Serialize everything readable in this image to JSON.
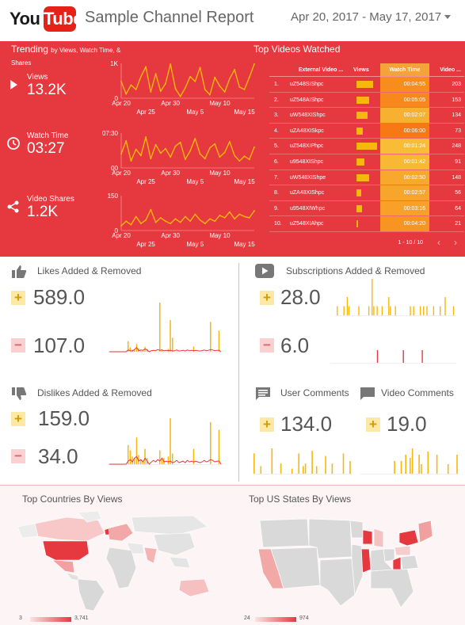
{
  "header": {
    "logo_you": "You",
    "logo_tube": "Tube",
    "title": "Sample Channel Report",
    "date_range": "Apr 20, 2017 - May 17, 2017"
  },
  "trending": {
    "title": "Trending",
    "subtitle": "by Views, Watch Time, & Shares",
    "kpis": [
      {
        "label": "Views",
        "value": "13.2K",
        "icon": "play-icon"
      },
      {
        "label": "Watch Time",
        "value": "03:27",
        "icon": "clock-icon"
      },
      {
        "label": "Video Shares",
        "value": "1.2K",
        "icon": "share-icon"
      }
    ],
    "x_tick_top": [
      "Apr 20",
      "Apr 30",
      "May 10"
    ],
    "x_tick_bottom": [
      "Apr 25",
      "May 5",
      "May 15"
    ]
  },
  "chart_data": [
    {
      "type": "line",
      "title": "Views",
      "ylim": [
        0,
        1000
      ],
      "y_ticks": [
        "1K",
        "0"
      ],
      "x": [
        "Apr 20",
        "Apr 21",
        "Apr 22",
        "Apr 23",
        "Apr 24",
        "Apr 25",
        "Apr 26",
        "Apr 27",
        "Apr 28",
        "Apr 29",
        "Apr 30",
        "May 1",
        "May 2",
        "May 3",
        "May 4",
        "May 5",
        "May 6",
        "May 7",
        "May 8",
        "May 9",
        "May 10",
        "May 11",
        "May 12",
        "May 13",
        "May 14",
        "May 15",
        "May 16",
        "May 17"
      ],
      "values": [
        480,
        120,
        380,
        250,
        620,
        900,
        180,
        700,
        200,
        420,
        980,
        280,
        50,
        300,
        620,
        480,
        880,
        250,
        100,
        600,
        350,
        180,
        560,
        820,
        320,
        250,
        600,
        980
      ],
      "color": "#f8b70d"
    },
    {
      "type": "line",
      "title": "Watch Time",
      "ylim": [
        0,
        450
      ],
      "y_ticks": [
        "07:30",
        "00"
      ],
      "x": [
        "Apr 20",
        "Apr 21",
        "Apr 22",
        "Apr 23",
        "Apr 24",
        "Apr 25",
        "Apr 26",
        "Apr 27",
        "Apr 28",
        "Apr 29",
        "Apr 30",
        "May 1",
        "May 2",
        "May 3",
        "May 4",
        "May 5",
        "May 6",
        "May 7",
        "May 8",
        "May 9",
        "May 10",
        "May 11",
        "May 12",
        "May 13",
        "May 14",
        "May 15",
        "May 16",
        "May 17"
      ],
      "values": [
        180,
        350,
        90,
        240,
        160,
        400,
        120,
        300,
        190,
        250,
        140,
        280,
        330,
        110,
        220,
        380,
        180,
        120,
        260,
        310,
        140,
        200,
        340,
        160,
        90,
        150,
        110,
        270
      ],
      "color": "#f8b70d"
    },
    {
      "type": "line",
      "title": "Video Shares",
      "ylim": [
        0,
        150
      ],
      "y_ticks": [
        "150",
        "0"
      ],
      "x": [
        "Apr 20",
        "Apr 21",
        "Apr 22",
        "Apr 23",
        "Apr 24",
        "Apr 25",
        "Apr 26",
        "Apr 27",
        "Apr 28",
        "Apr 29",
        "Apr 30",
        "May 1",
        "May 2",
        "May 3",
        "May 4",
        "May 5",
        "May 6",
        "May 7",
        "May 8",
        "May 9",
        "May 10",
        "May 11",
        "May 12",
        "May 13",
        "May 14",
        "May 15",
        "May 16",
        "May 17"
      ],
      "values": [
        20,
        40,
        25,
        60,
        30,
        45,
        90,
        35,
        55,
        40,
        30,
        50,
        35,
        60,
        40,
        70,
        45,
        30,
        50,
        40,
        65,
        55,
        80,
        50,
        70,
        60,
        55,
        85
      ],
      "color": "#f8b70d"
    },
    {
      "type": "bar",
      "title": "Likes Added & Removed",
      "added": [
        0,
        0,
        0,
        0,
        0,
        0,
        0,
        0,
        0,
        30,
        12,
        6,
        5,
        22,
        10,
        4,
        3,
        14,
        8,
        0,
        0,
        0,
        0,
        0,
        140,
        6,
        0,
        0,
        8,
        90,
        40,
        0,
        0,
        0,
        0,
        0,
        0,
        0,
        0,
        0,
        15,
        0,
        0,
        0,
        0,
        0,
        0,
        0,
        85,
        0,
        0,
        0,
        60,
        0
      ],
      "removed": [
        0,
        0,
        0,
        0,
        0,
        0,
        0,
        0,
        0,
        5,
        3,
        2,
        6,
        12,
        3,
        5,
        4,
        8,
        5,
        0,
        3,
        4,
        3,
        6,
        4,
        5,
        3,
        4,
        3,
        4,
        2,
        3,
        5,
        2,
        3,
        4,
        2,
        5,
        3,
        4,
        3,
        4,
        3,
        2,
        3,
        5,
        3,
        4,
        6,
        5,
        3,
        4,
        4,
        0
      ],
      "added_color": "#f8b70d",
      "removed_color": "#e6393f"
    },
    {
      "type": "bar",
      "title": "Dislikes Added & Removed",
      "added": [
        0,
        0,
        0,
        0,
        0,
        0,
        0,
        0,
        0,
        25,
        18,
        10,
        8,
        35,
        12,
        6,
        4,
        20,
        8,
        0,
        0,
        0,
        0,
        0,
        18,
        6,
        8,
        0,
        10,
        60,
        14,
        0,
        0,
        0,
        0,
        0,
        0,
        0,
        0,
        0,
        20,
        0,
        0,
        0,
        0,
        0,
        0,
        0,
        55,
        0,
        0,
        0,
        45,
        0
      ],
      "removed": [
        0,
        0,
        0,
        0,
        0,
        0,
        0,
        0,
        0,
        4,
        6,
        3,
        8,
        10,
        4,
        6,
        3,
        8,
        4,
        0,
        3,
        5,
        3,
        6,
        4,
        8,
        3,
        4,
        3,
        4,
        2,
        3,
        5,
        2,
        3,
        4,
        2,
        5,
        3,
        4,
        3,
        4,
        3,
        2,
        3,
        5,
        3,
        4,
        6,
        5,
        3,
        4,
        4,
        0
      ],
      "added_color": "#f8b70d",
      "removed_color": "#e6393f"
    },
    {
      "type": "bar",
      "title": "Subscriptions Added & Removed",
      "added": [
        0,
        1,
        0,
        0,
        0,
        1,
        0,
        2,
        1,
        0,
        0,
        0,
        0,
        0,
        1,
        0,
        0,
        0,
        0,
        0,
        1,
        0,
        4,
        1,
        0,
        1,
        0,
        0,
        1,
        0,
        0,
        0,
        2,
        1,
        0,
        0,
        1,
        0,
        0,
        0,
        0,
        0,
        0,
        0,
        0,
        1,
        0,
        1,
        0,
        0,
        0,
        1,
        0,
        1,
        0,
        1,
        0,
        0,
        0,
        1,
        0,
        0,
        0,
        1,
        0,
        0,
        2,
        0,
        0,
        0,
        0,
        1,
        0
      ],
      "removed": [
        0,
        0,
        0,
        0,
        0,
        0,
        0,
        0,
        0,
        0,
        0,
        0,
        0,
        0,
        0,
        0,
        0,
        0,
        0,
        0,
        0,
        0,
        0,
        0,
        0,
        0,
        0,
        1,
        0,
        0,
        0,
        0,
        0,
        0,
        0,
        0,
        0,
        0,
        0,
        0,
        0,
        0,
        1,
        0,
        0,
        0,
        0,
        0,
        0,
        0,
        0,
        0,
        0,
        1,
        0,
        0,
        0,
        0,
        0,
        0,
        0,
        0,
        0,
        0,
        0,
        0,
        0,
        0,
        0,
        0,
        0,
        0,
        0
      ],
      "added_color": "#f8b70d",
      "removed_color": "#e6393f"
    },
    {
      "type": "bar",
      "title": "User Comments",
      "values": [
        8,
        0,
        0,
        3,
        0,
        0,
        0,
        0,
        10,
        0,
        0,
        0,
        4,
        0,
        0,
        0,
        0,
        2,
        0,
        0,
        8,
        0,
        3,
        4,
        0,
        0,
        9,
        0,
        3,
        0,
        0,
        0,
        7,
        0,
        0,
        4,
        0,
        0,
        0,
        0,
        8,
        0,
        0,
        5
      ],
      "color": "#f8b70d"
    },
    {
      "type": "bar",
      "title": "Video Comments",
      "values": [
        0,
        0,
        0,
        0,
        0,
        0,
        0,
        0,
        0,
        0,
        0,
        0,
        0,
        0,
        0,
        4,
        0,
        0,
        4,
        0,
        6,
        0,
        5,
        8,
        0,
        0,
        6,
        3,
        0,
        0,
        7,
        0,
        0,
        0,
        6,
        0,
        0,
        0,
        0,
        3,
        0,
        0,
        0,
        6
      ],
      "color": "#f8b70d"
    }
  ],
  "top_videos": {
    "title": "Top Videos Watched",
    "columns": [
      "External Video ...",
      "Views",
      "Watch Time",
      "Video ..."
    ],
    "rows": [
      {
        "rank": "1.",
        "id": "uZ548SIShpc",
        "views_frac": 0.82,
        "watch_time": "00:04:55",
        "videos": "203",
        "wt_level": 0.75
      },
      {
        "rank": "2.",
        "id": "uZ548AIShpc",
        "views_frac": 0.62,
        "watch_time": "00:05:05",
        "videos": "153",
        "wt_level": 0.8
      },
      {
        "rank": "3.",
        "id": "uW548XIShpc",
        "views_frac": 0.55,
        "watch_time": "00:02:07",
        "videos": "134",
        "wt_level": 0.3
      },
      {
        "rank": "4.",
        "id": "uZA48XISkpc",
        "views_frac": 0.3,
        "watch_time": "00:06:00",
        "videos": "73",
        "wt_level": 1.0
      },
      {
        "rank": "5.",
        "id": "uZ548XIPhpc",
        "views_frac": 1.0,
        "watch_time": "00:01:24",
        "videos": "248",
        "wt_level": 0.15
      },
      {
        "rank": "6.",
        "id": "u9548XIShpc",
        "views_frac": 0.37,
        "watch_time": "00:01:42",
        "videos": "91",
        "wt_level": 0.2
      },
      {
        "rank": "7.",
        "id": "uW548XIShpe",
        "views_frac": 0.6,
        "watch_time": "00:02:50",
        "videos": "148",
        "wt_level": 0.4
      },
      {
        "rank": "8.",
        "id": "uZA48XIShpc",
        "views_frac": 0.23,
        "watch_time": "00:02:57",
        "videos": "56",
        "wt_level": 0.42
      },
      {
        "rank": "9.",
        "id": "u9548XIWhpc",
        "views_frac": 0.26,
        "watch_time": "00:03:16",
        "videos": "64",
        "wt_level": 0.5
      },
      {
        "rank": "10.",
        "id": "uZ548XIAhpc",
        "views_frac": 0.09,
        "watch_time": "00:04:20",
        "videos": "21",
        "wt_level": 0.65
      }
    ],
    "pager": "1 - 10 / 10"
  },
  "cards": {
    "likes": {
      "title": "Likes Added & Removed",
      "added": "589.0",
      "removed": "107.0"
    },
    "dislikes": {
      "title": "Dislikes Added & Removed",
      "added": "159.0",
      "removed": "34.0"
    },
    "subscriptions": {
      "title": "Subscriptions Added & Removed",
      "added": "28.0",
      "removed": "6.0"
    },
    "user_comments": {
      "title": "User Comments",
      "value": "134.0"
    },
    "video_comments": {
      "title": "Video Comments",
      "value": "19.0"
    },
    "plus_symbol": "+",
    "minus_symbol": "−"
  },
  "maps": {
    "countries": {
      "title": "Top Countries By Views",
      "min": "3",
      "max": "3,741"
    },
    "us_states": {
      "title": "Top US States By Views",
      "min": "24",
      "max": "974"
    }
  },
  "colors": {
    "brand_red": "#e62117",
    "panel_red": "#e6393f",
    "accent_yellow": "#f8b70d"
  }
}
